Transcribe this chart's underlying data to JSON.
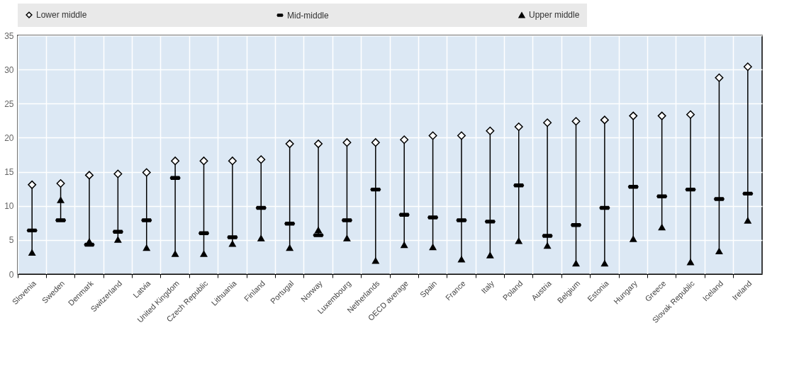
{
  "chart_data": {
    "type": "scatter",
    "categories": [
      "Slovenia",
      "Sweden",
      "Denmark",
      "Switzerland",
      "Latvia",
      "United Kingdom",
      "Czech Republic",
      "Lithuania",
      "Finland",
      "Portugal",
      "Norway",
      "Luxembourg",
      "Netherlands",
      "OECD average",
      "Spain",
      "France",
      "Italy",
      "Poland",
      "Austria",
      "Belgium",
      "Estonia",
      "Hungary",
      "Greece",
      "Slovak Republic",
      "Iceland",
      "Ireland"
    ],
    "series": [
      {
        "name": "Lower middle",
        "color": "#ffffff",
        "marker": "diamond",
        "values": [
          13.1,
          13.3,
          14.5,
          14.7,
          14.9,
          16.6,
          16.6,
          16.6,
          16.8,
          19.1,
          19.1,
          19.3,
          19.3,
          19.7,
          20.3,
          20.3,
          21.0,
          21.6,
          22.2,
          22.4,
          22.6,
          23.2,
          23.2,
          23.4,
          28.8,
          30.4
        ]
      },
      {
        "name": "Mid-middle",
        "color": "#000000",
        "values": [
          6.4,
          7.9,
          4.3,
          6.2,
          7.9,
          14.1,
          6.0,
          5.4,
          9.7,
          7.4,
          5.7,
          7.9,
          12.4,
          8.7,
          8.3,
          7.9,
          7.7,
          13.0,
          5.6,
          7.2,
          9.7,
          12.8,
          11.4,
          12.4,
          11.0,
          11.8
        ]
      },
      {
        "name": "Upper middle",
        "color": "#000000",
        "marker": "triangle",
        "values": [
          3.2,
          10.9,
          4.8,
          5.1,
          3.9,
          3.0,
          3.0,
          4.5,
          5.3,
          3.9,
          6.5,
          5.3,
          2.0,
          4.3,
          4.0,
          2.2,
          2.8,
          4.9,
          4.2,
          1.6,
          1.6,
          5.2,
          6.9,
          1.8,
          3.4,
          7.9
        ]
      }
    ],
    "ylim": [
      0,
      35
    ],
    "yticks": [
      0,
      5,
      10,
      15,
      20,
      25,
      30,
      35
    ],
    "grid": true,
    "legend": "top"
  }
}
